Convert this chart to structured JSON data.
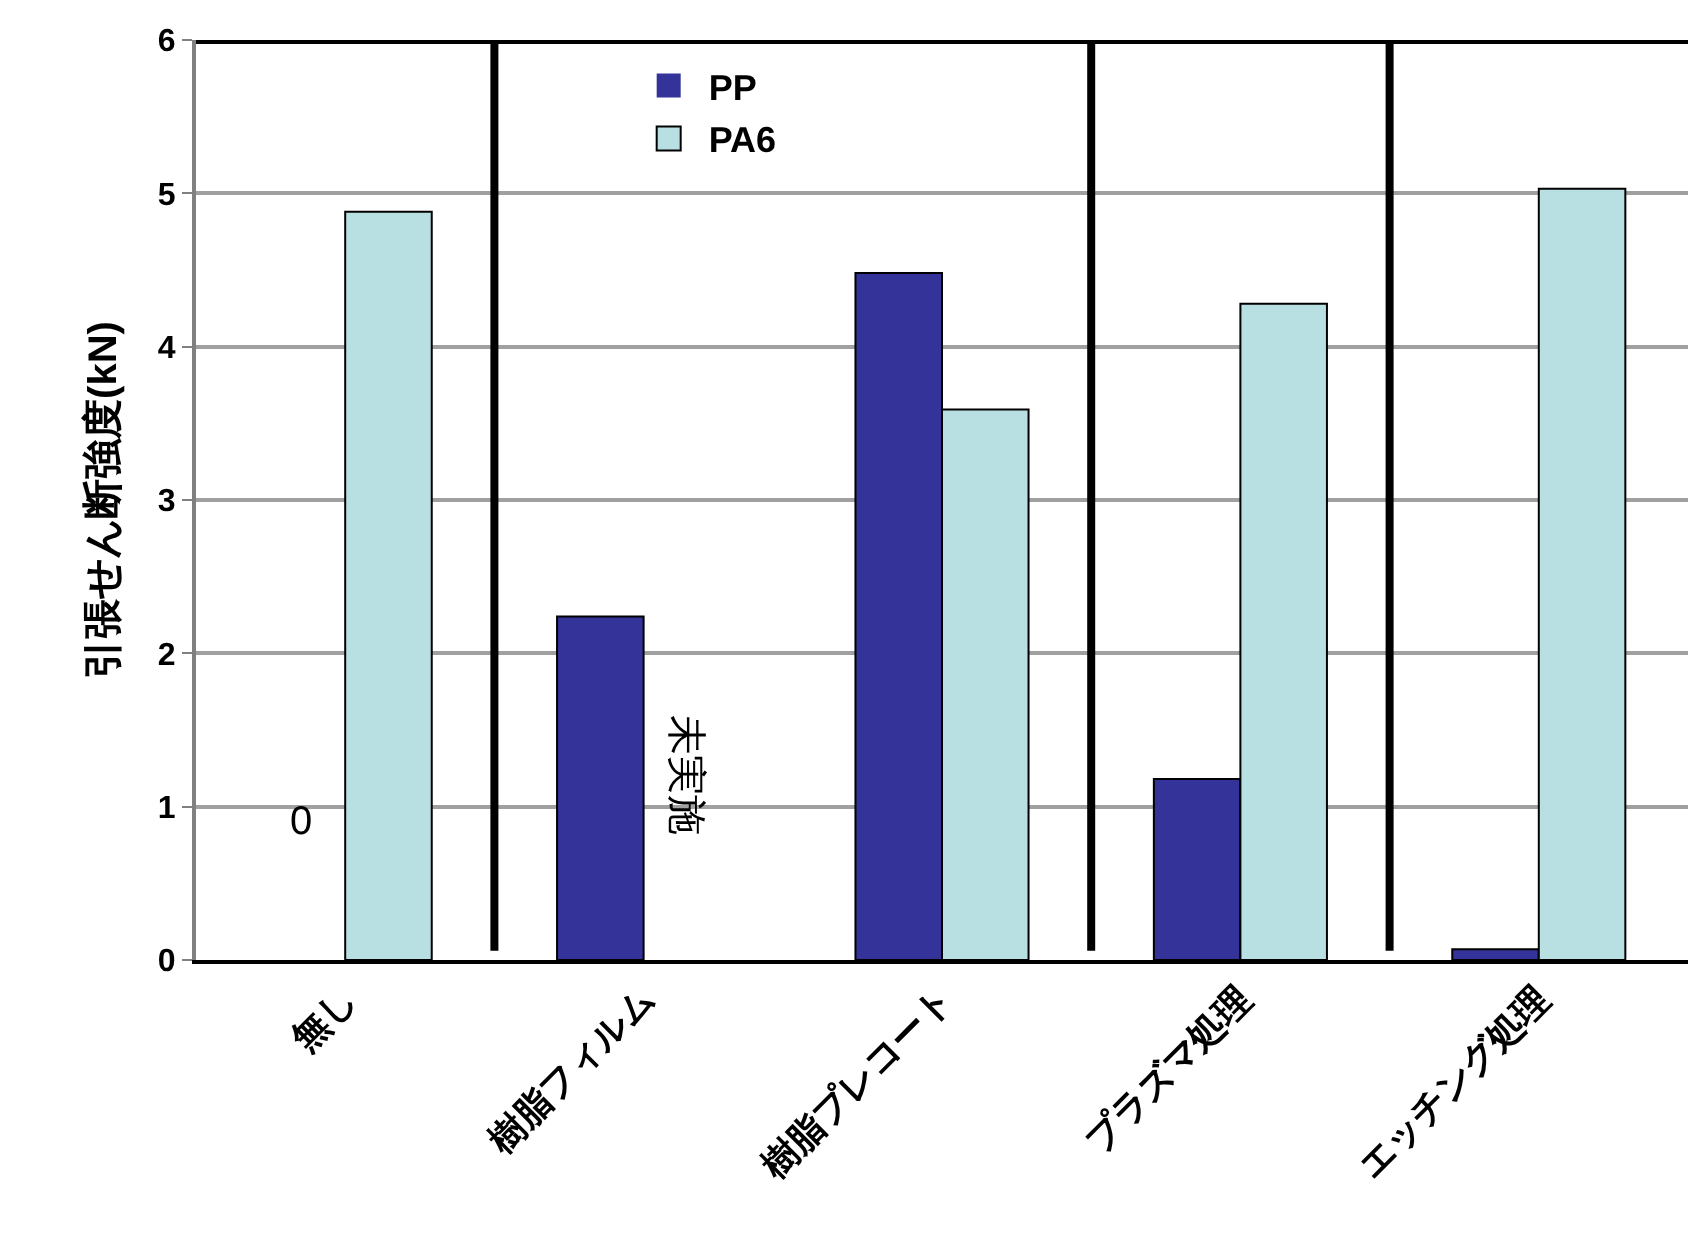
{
  "chart_data": {
    "type": "bar",
    "ylabel": "引張せん断強度(kN)",
    "categories": [
      "無し",
      "樹脂フィルム",
      "樹脂プレコート",
      "プラズマ処理",
      "エッチング処理"
    ],
    "series": [
      {
        "name": "PP",
        "color": "#333399",
        "values": [
          0,
          2.24,
          4.48,
          1.18,
          0.07
        ]
      },
      {
        "name": "PA6",
        "color": "#b8e0e3",
        "values": [
          4.88,
          null,
          3.59,
          4.28,
          5.03
        ]
      }
    ],
    "ylim": [
      0,
      6
    ],
    "yticks": [
      0,
      1,
      2,
      3,
      4,
      5,
      6
    ],
    "grid": "y",
    "legend": "top",
    "annotations": [
      {
        "text": "0",
        "x": "無し",
        "y": 0.9
      },
      {
        "text": "未実施",
        "x": "樹脂フィルム",
        "y": 1.2
      }
    ]
  }
}
